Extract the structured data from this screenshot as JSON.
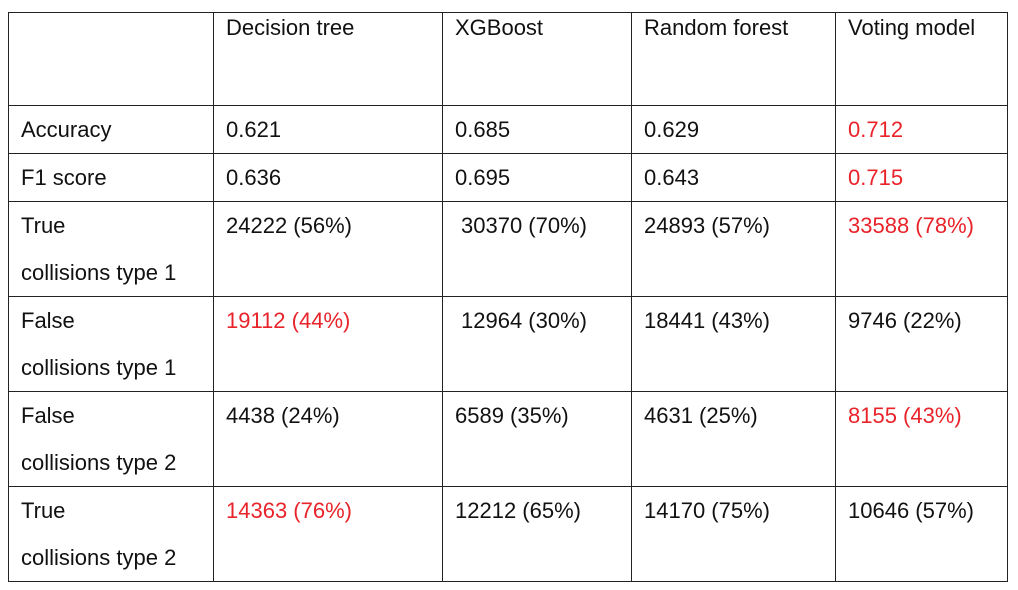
{
  "table": {
    "headers": [
      "",
      "Decision tree",
      "XGBoost",
      "Random forest",
      "Voting model"
    ],
    "rows": [
      {
        "label": [
          "Accuracy"
        ],
        "cells": [
          {
            "text": "0.621",
            "highlight": false
          },
          {
            "text": "0.685",
            "highlight": false
          },
          {
            "text": "0.629",
            "highlight": false
          },
          {
            "text": "0.712",
            "highlight": true
          }
        ]
      },
      {
        "label": [
          "F1 score"
        ],
        "cells": [
          {
            "text": "0.636",
            "highlight": false
          },
          {
            "text": "0.695",
            "highlight": false
          },
          {
            "text": "0.643",
            "highlight": false
          },
          {
            "text": "0.715",
            "highlight": true
          }
        ]
      },
      {
        "label": [
          "True",
          "collisions type 1"
        ],
        "cells": [
          {
            "text": "24222 (56%)",
            "highlight": false
          },
          {
            "text": "30370 (70%)",
            "highlight": false
          },
          {
            "text": "24893 (57%)",
            "highlight": false
          },
          {
            "text": "33588 (78%)",
            "highlight": true
          }
        ]
      },
      {
        "label": [
          "False",
          "collisions type 1"
        ],
        "cells": [
          {
            "text": "19112 (44%)",
            "highlight": true
          },
          {
            "text": "12964 (30%)",
            "highlight": false
          },
          {
            "text": "18441 (43%)",
            "highlight": false
          },
          {
            "text": "9746 (22%)",
            "highlight": false
          }
        ]
      },
      {
        "label": [
          "False",
          "collisions type 2"
        ],
        "cells": [
          {
            "text": "4438 (24%)",
            "highlight": false
          },
          {
            "text": "6589 (35%)",
            "highlight": false
          },
          {
            "text": "4631 (25%)",
            "highlight": false
          },
          {
            "text": "8155 (43%)",
            "highlight": true
          }
        ]
      },
      {
        "label": [
          "True",
          "collisions type 2"
        ],
        "cells": [
          {
            "text": "14363 (76%)",
            "highlight": true
          },
          {
            "text": "12212 (65%)",
            "highlight": false
          },
          {
            "text": "14170 (75%)",
            "highlight": false
          },
          {
            "text": "10646 (57%)",
            "highlight": false
          }
        ]
      }
    ]
  },
  "colors": {
    "highlight": "#e8232a",
    "text": "#111111",
    "border": "#222222"
  }
}
